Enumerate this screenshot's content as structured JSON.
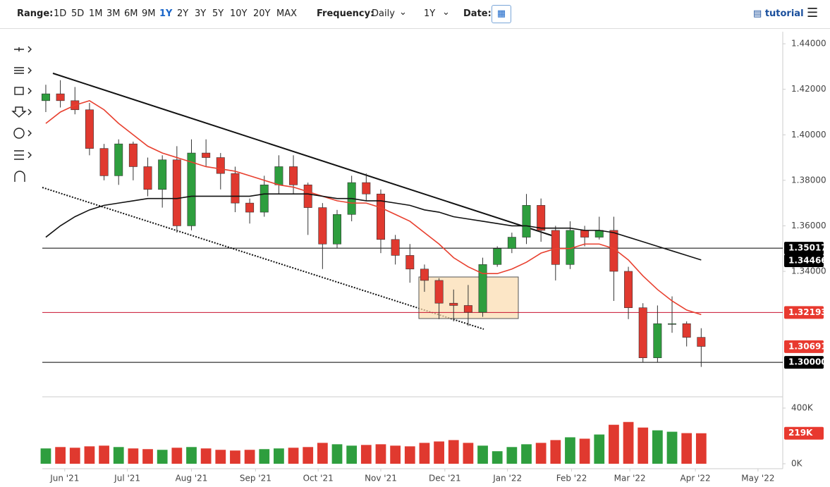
{
  "toolbar": {
    "range_label": "Range:",
    "ranges": [
      "1D",
      "5D",
      "1M",
      "3M",
      "6M",
      "9M",
      "1Y",
      "2Y",
      "3Y",
      "5Y",
      "10Y",
      "20Y",
      "MAX"
    ],
    "frequency_label": "Frequency:",
    "frequency": "Daily",
    "period": "1Y",
    "date_label": "Date:",
    "tutorial": "tutorial"
  },
  "chart_data": {
    "type": "candlestick",
    "categories": [
      null,
      null,
      null,
      null,
      null,
      null,
      null,
      null,
      null,
      null,
      null,
      null,
      null,
      null,
      null,
      null,
      null,
      null,
      null,
      null,
      null,
      null,
      null,
      null,
      null,
      null,
      null,
      null,
      null,
      null,
      null,
      null,
      null,
      null,
      null,
      null,
      null,
      null,
      null,
      null,
      null,
      null,
      null,
      null,
      null,
      null
    ],
    "open": [
      1.415,
      1.418,
      1.415,
      1.411,
      1.394,
      1.382,
      1.396,
      1.386,
      1.376,
      1.389,
      1.36,
      1.392,
      1.39,
      1.383,
      1.37,
      1.366,
      1.378,
      1.386,
      1.378,
      1.368,
      1.352,
      1.365,
      1.379,
      1.374,
      1.354,
      1.347,
      1.341,
      1.336,
      1.326,
      1.325,
      1.322,
      1.343,
      1.35,
      1.355,
      1.369,
      1.358,
      1.343,
      1.358,
      1.355,
      1.358,
      1.34,
      1.324,
      1.302,
      1.317,
      1.317,
      1.311
    ],
    "high": [
      1.422,
      1.424,
      1.421,
      1.414,
      1.396,
      1.398,
      1.397,
      1.39,
      1.391,
      1.395,
      1.398,
      1.398,
      1.392,
      1.386,
      1.372,
      1.382,
      1.391,
      1.391,
      1.379,
      1.37,
      1.367,
      1.382,
      1.383,
      1.376,
      1.356,
      1.352,
      1.343,
      1.337,
      1.332,
      1.334,
      1.346,
      1.351,
      1.357,
      1.374,
      1.372,
      1.36,
      1.362,
      1.36,
      1.364,
      1.364,
      1.342,
      1.326,
      1.325,
      1.329,
      1.318,
      1.315
    ],
    "low": [
      1.41,
      1.412,
      1.409,
      1.391,
      1.38,
      1.378,
      1.38,
      1.373,
      1.368,
      1.357,
      1.358,
      1.386,
      1.376,
      1.366,
      1.361,
      1.364,
      1.374,
      1.374,
      1.356,
      1.341,
      1.35,
      1.362,
      1.371,
      1.348,
      1.343,
      1.335,
      1.331,
      1.319,
      1.318,
      1.316,
      1.32,
      1.342,
      1.348,
      1.352,
      1.353,
      1.336,
      1.341,
      1.351,
      1.354,
      1.327,
      1.319,
      1.3,
      1.3,
      1.313,
      1.307,
      1.298
    ],
    "close": [
      1.418,
      1.415,
      1.411,
      1.394,
      1.382,
      1.396,
      1.386,
      1.376,
      1.389,
      1.36,
      1.392,
      1.39,
      1.383,
      1.37,
      1.366,
      1.378,
      1.386,
      1.378,
      1.368,
      1.352,
      1.365,
      1.379,
      1.374,
      1.354,
      1.347,
      1.341,
      1.336,
      1.326,
      1.325,
      1.322,
      1.343,
      1.35,
      1.355,
      1.369,
      1.358,
      1.343,
      1.358,
      1.355,
      1.358,
      1.34,
      1.324,
      1.302,
      1.317,
      1.317,
      1.311,
      1.307
    ],
    "up_color": "#2e9e3e",
    "down_color": "#e0392f",
    "series": [
      {
        "name": null,
        "color": "#e8402f",
        "values": [
          1.405,
          1.41,
          1.413,
          1.415,
          1.411,
          1.405,
          1.4,
          1.395,
          1.392,
          1.39,
          1.388,
          1.386,
          1.385,
          1.384,
          1.382,
          1.38,
          1.378,
          1.377,
          1.375,
          1.373,
          1.371,
          1.37,
          1.37,
          1.368,
          1.365,
          1.362,
          1.357,
          1.352,
          1.346,
          1.342,
          1.339,
          1.339,
          1.341,
          1.344,
          1.348,
          1.35,
          1.35,
          1.352,
          1.352,
          1.35,
          1.345,
          1.338,
          1.332,
          1.327,
          1.323,
          1.321
        ]
      },
      {
        "name": null,
        "color": "#111111",
        "values": [
          1.355,
          1.36,
          1.364,
          1.367,
          1.369,
          1.37,
          1.371,
          1.372,
          1.372,
          1.372,
          1.373,
          1.373,
          1.373,
          1.373,
          1.373,
          1.374,
          1.374,
          1.374,
          1.374,
          1.373,
          1.372,
          1.372,
          1.371,
          1.371,
          1.37,
          1.369,
          1.367,
          1.366,
          1.364,
          1.363,
          1.362,
          1.361,
          1.36,
          1.36,
          1.359,
          1.359,
          1.359,
          1.358,
          1.358,
          1.357,
          1.355,
          1.353,
          1.351,
          1.349,
          1.347,
          1.345
        ]
      }
    ],
    "hlines": [
      {
        "value": 1.35017,
        "color": "#000000"
      },
      {
        "value": 1.32193,
        "color": "#c8102e"
      },
      {
        "value": 1.3,
        "color": "#000000"
      }
    ],
    "price_tags": [
      {
        "value": 1.35017,
        "color": "#000000"
      },
      {
        "value": 1.34466,
        "color": "#000000"
      },
      {
        "value": 1.32193,
        "color": "#e8392f"
      },
      {
        "value": 1.30691,
        "color": "#e8392f"
      },
      {
        "value": 1.3,
        "label": "1.30000",
        "color": "#000000"
      }
    ],
    "ylim": [
      1.2858,
      1.4453
    ],
    "yticks": [
      {
        "value": 1.44,
        "label": "1.44000"
      },
      {
        "value": 1.42,
        "label": "1.42000"
      },
      {
        "value": 1.4,
        "label": "1.40000"
      },
      {
        "value": 1.38,
        "label": "1.38000"
      },
      {
        "value": 1.36,
        "label": "1.36000"
      },
      {
        "value": 1.34,
        "label": "1.34000"
      }
    ],
    "xlim": [
      -0.24,
      50.6
    ],
    "xticks": [
      {
        "value": 1.3,
        "label": "Jun '21"
      },
      {
        "value": 5.6,
        "label": "Jul '21"
      },
      {
        "value": 10,
        "label": "Aug '21"
      },
      {
        "value": 14.4,
        "label": "Sep '21"
      },
      {
        "value": 18.7,
        "label": "Oct '21"
      },
      {
        "value": 23,
        "label": "Nov '21"
      },
      {
        "value": 27.4,
        "label": "Dec '21"
      },
      {
        "value": 31.7,
        "label": "Jan '22"
      },
      {
        "value": 36.1,
        "label": "Feb '22"
      },
      {
        "value": 40.1,
        "label": "Mar '22"
      },
      {
        "value": 44.6,
        "label": "Apr '22"
      },
      {
        "value": 48.9,
        "label": "May '22"
      }
    ],
    "volume": {
      "values": [
        110000,
        120000,
        115000,
        125000,
        130000,
        120000,
        110000,
        105000,
        100000,
        115000,
        120000,
        110000,
        100000,
        95000,
        100000,
        105000,
        110000,
        115000,
        120000,
        150000,
        140000,
        130000,
        135000,
        140000,
        130000,
        125000,
        150000,
        160000,
        170000,
        150000,
        130000,
        90000,
        120000,
        140000,
        150000,
        170000,
        190000,
        180000,
        210000,
        280000,
        300000,
        260000,
        240000,
        230000,
        220000,
        219000
      ],
      "ylim": [
        0,
        400000
      ],
      "yticks": [
        {
          "value": 400000,
          "label": "400K"
        },
        {
          "value": 0,
          "label": "0K"
        }
      ],
      "tag": {
        "value": 219000,
        "label": "219K",
        "color": "#e8392f"
      }
    }
  }
}
